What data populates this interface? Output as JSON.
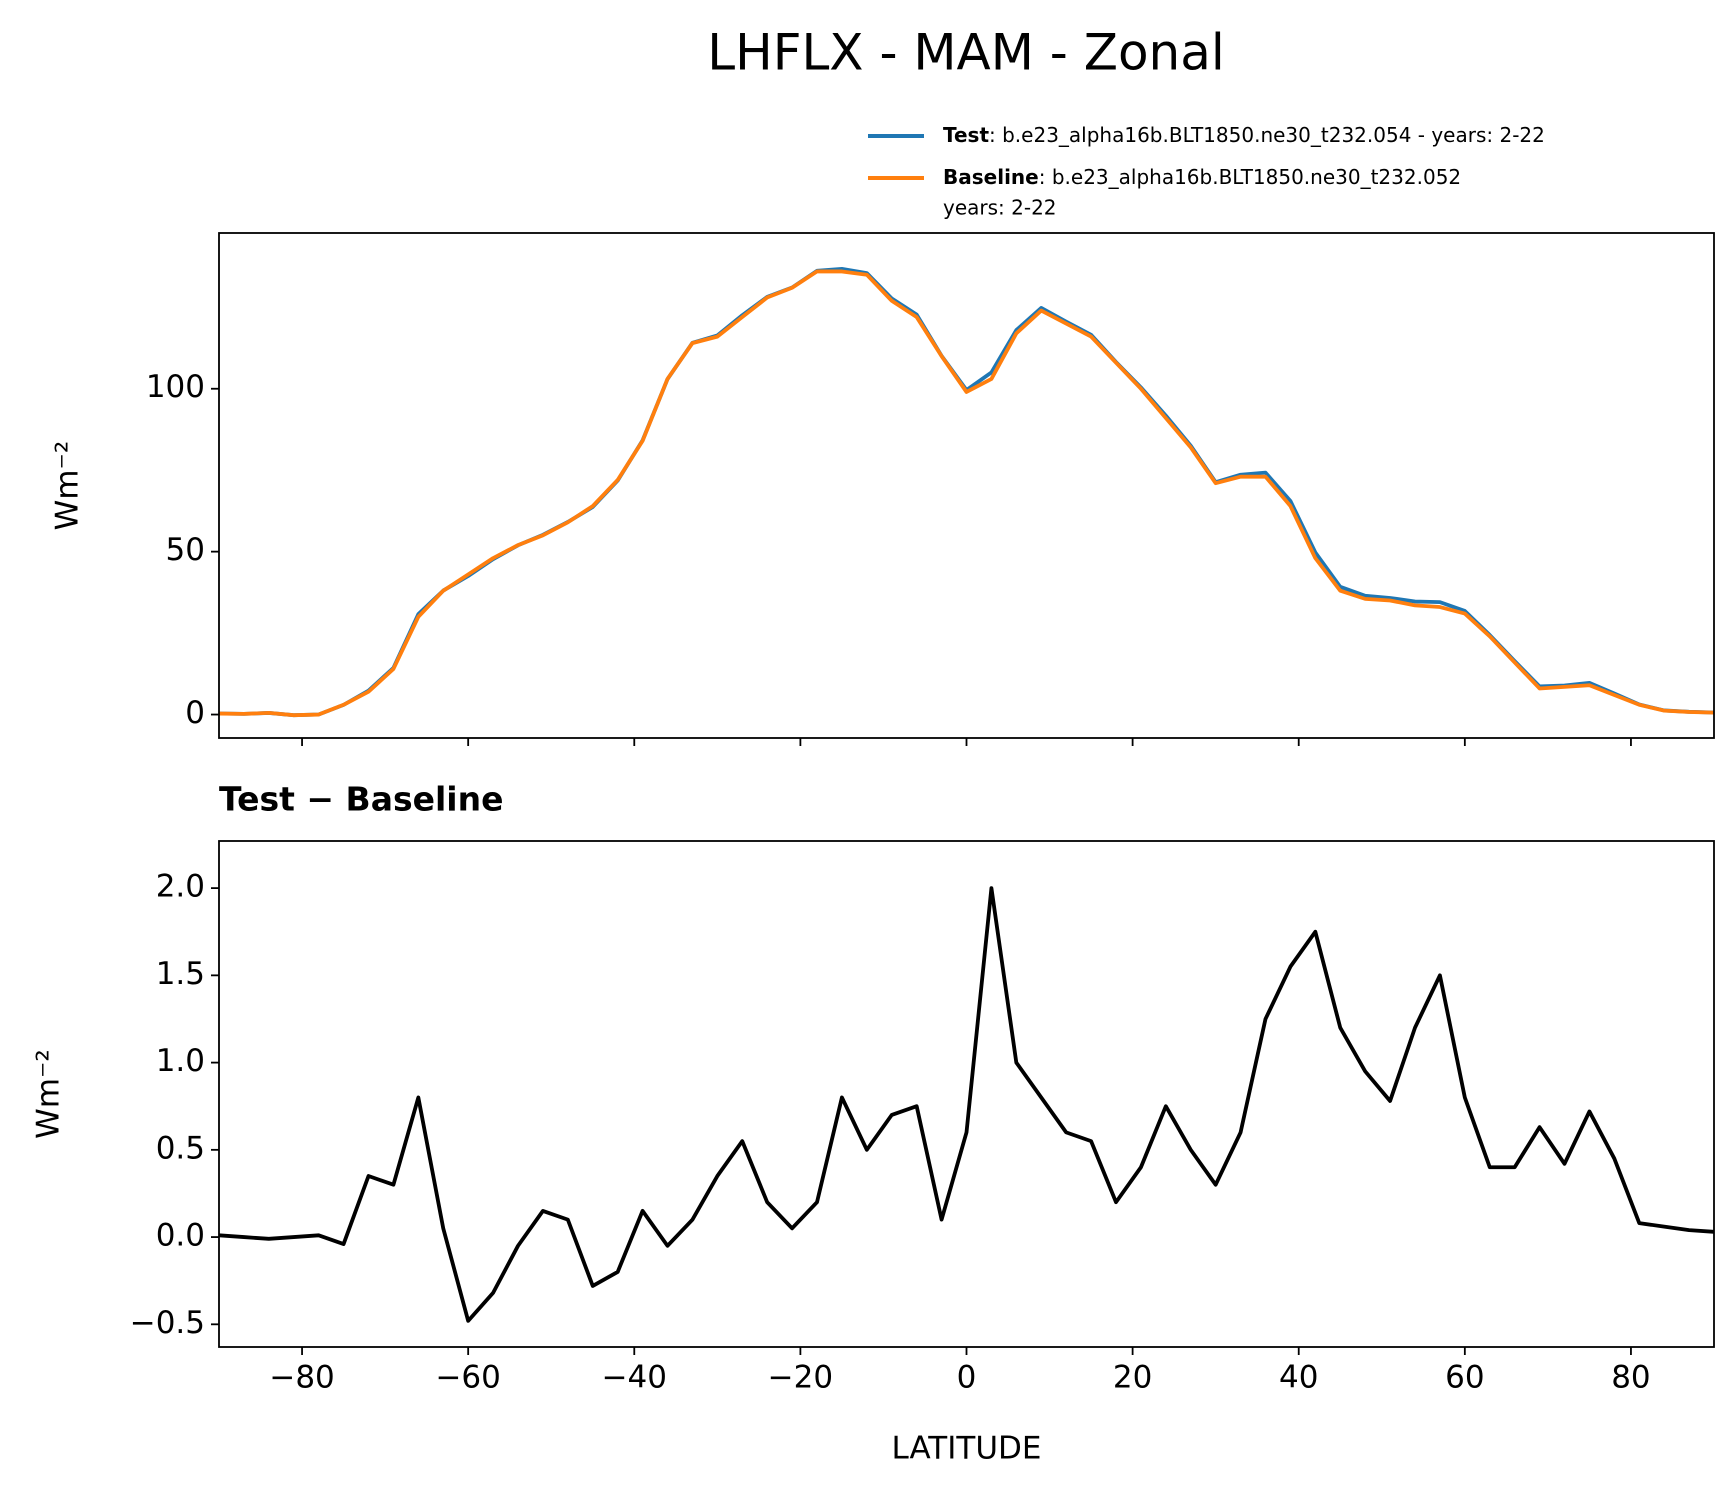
{
  "title": "LHFLX - MAM - Zonal",
  "chart_data": [
    {
      "type": "line",
      "x": [
        -90,
        -87,
        -84,
        -81,
        -78,
        -75,
        -72,
        -69,
        -66,
        -63,
        -60,
        -57,
        -54,
        -51,
        -48,
        -45,
        -42,
        -39,
        -36,
        -33,
        -30,
        -27,
        -24,
        -21,
        -18,
        -15,
        -12,
        -9,
        -6,
        -3,
        0,
        3,
        6,
        9,
        12,
        15,
        18,
        21,
        24,
        27,
        30,
        33,
        36,
        39,
        42,
        45,
        48,
        51,
        54,
        57,
        60,
        63,
        66,
        69,
        72,
        75,
        78,
        81,
        84,
        87,
        90
      ],
      "series": [
        {
          "name": "Test",
          "description": [
            ": b.e23_alpha16b.BLT1850.ne30_t232.054 - years: 2-22"
          ],
          "color": "#1f77b4",
          "values": [
            0.31,
            0.2,
            0.49,
            -0.2,
            0.01,
            2.96,
            7.35,
            14.3,
            30.8,
            38.05,
            42.52,
            47.68,
            51.95,
            55.15,
            59.1,
            63.72,
            71.8,
            84.15,
            102.95,
            114.1,
            116.35,
            122.55,
            128.2,
            131.05,
            136.2,
            136.8,
            135.5,
            127.7,
            122.75,
            110.1,
            99.6,
            105,
            118,
            124.8,
            120.6,
            116.55,
            108.2,
            100.4,
            91.75,
            82.5,
            71.3,
            73.6,
            74.25,
            65.55,
            49.75,
            39.2,
            36.45,
            35.78,
            34.7,
            34.5,
            31.8,
            24.4,
            16.4,
            8.63,
            8.92,
            9.72,
            6.45,
            3.08,
            1.26,
            0.84,
            0.63
          ]
        },
        {
          "name": "Baseline",
          "description": [
            ": b.e23_alpha16b.BLT1850.ne30_t232.052",
            "years: 2-22"
          ],
          "color": "#ff7f0e",
          "values": [
            0.3,
            0.2,
            0.5,
            -0.2,
            0.0,
            3,
            7,
            14,
            30,
            38,
            43,
            48,
            52,
            55,
            59,
            64,
            72,
            84,
            103,
            114,
            116,
            122,
            128,
            131,
            136,
            136,
            135,
            127,
            122,
            110,
            99,
            103,
            117,
            124,
            120,
            116,
            108,
            100,
            91,
            82,
            71,
            73,
            73,
            64,
            48,
            38,
            35.5,
            35,
            33.5,
            33,
            31,
            24,
            16,
            8,
            8.5,
            9,
            6,
            3,
            1.2,
            0.8,
            0.6
          ]
        }
      ],
      "ylabel": "Wm⁻²",
      "xlim": [
        -90,
        90
      ],
      "ylim": [
        -7.2,
        147.8
      ],
      "xticks": [
        -80,
        -60,
        -40,
        -20,
        0,
        20,
        40,
        60,
        80
      ],
      "show_xtick_labels": false,
      "yticks": [
        0,
        50,
        100
      ]
    },
    {
      "type": "line",
      "title": "Test − Baseline",
      "x": [
        -90,
        -87,
        -84,
        -81,
        -78,
        -75,
        -72,
        -69,
        -66,
        -63,
        -60,
        -57,
        -54,
        -51,
        -48,
        -45,
        -42,
        -39,
        -36,
        -33,
        -30,
        -27,
        -24,
        -21,
        -18,
        -15,
        -12,
        -9,
        -6,
        -3,
        0,
        3,
        6,
        9,
        12,
        15,
        18,
        21,
        24,
        27,
        30,
        33,
        36,
        39,
        42,
        45,
        48,
        51,
        54,
        57,
        60,
        63,
        66,
        69,
        72,
        75,
        78,
        81,
        84,
        87,
        90
      ],
      "series": [
        {
          "color": "#000000",
          "values": [
            0.01,
            0.0,
            -0.01,
            0.0,
            0.01,
            -0.04,
            0.35,
            0.3,
            0.8,
            0.05,
            -0.48,
            -0.32,
            -0.05,
            0.15,
            0.1,
            -0.28,
            -0.2,
            0.15,
            -0.05,
            0.1,
            0.35,
            0.55,
            0.2,
            0.05,
            0.2,
            0.8,
            0.5,
            0.7,
            0.75,
            0.1,
            0.6,
            2.0,
            1.0,
            0.8,
            0.6,
            0.55,
            0.2,
            0.4,
            0.75,
            0.5,
            0.3,
            0.6,
            1.25,
            1.55,
            1.75,
            1.2,
            0.95,
            0.78,
            1.2,
            1.5,
            0.8,
            0.4,
            0.4,
            0.63,
            0.42,
            0.72,
            0.45,
            0.08,
            0.06,
            0.04,
            0.03
          ]
        }
      ],
      "xlabel": "LATITUDE",
      "ylabel": "Wm⁻²",
      "xlim": [
        -90,
        90
      ],
      "ylim": [
        -0.63,
        2.27
      ],
      "xticks": [
        {
          "value": -80,
          "label": "−80"
        },
        {
          "value": -60,
          "label": "−60"
        },
        {
          "value": -40,
          "label": "−40"
        },
        {
          "value": -20,
          "label": "−20"
        },
        0,
        20,
        40,
        60,
        80
      ],
      "show_xtick_labels": true,
      "yticks": [
        {
          "value": -0.5,
          "label": "−0.5"
        },
        {
          "value": 0,
          "label": "0.0"
        },
        {
          "value": 0.5,
          "label": "0.5"
        },
        {
          "value": 1,
          "label": "1.0"
        },
        {
          "value": 1.5,
          "label": "1.5"
        },
        {
          "value": 2,
          "label": "2.0"
        }
      ]
    }
  ]
}
